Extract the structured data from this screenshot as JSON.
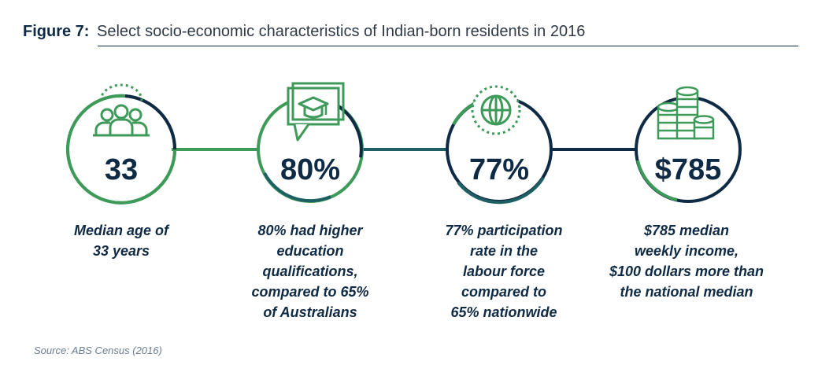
{
  "figure": {
    "label": "Figure 7:",
    "title": "Select socio-economic characteristics of Indian-born residents in 2016"
  },
  "colors": {
    "navy": "#0f2a44",
    "green": "#3e9a58",
    "teal": "#1d5f63"
  },
  "stats": [
    {
      "value": "33",
      "icon": "people-group-icon",
      "caption_lines": [
        "Median age of",
        "33 years"
      ]
    },
    {
      "value": "80%",
      "icon": "graduation-cap-icon",
      "caption_lines": [
        "80% had higher",
        "education",
        "qualifications,",
        "compared to 65%",
        "of Australians"
      ]
    },
    {
      "value": "77%",
      "icon": "globe-icon",
      "caption_lines": [
        "77% participation",
        "rate in the",
        "labour force",
        "compared to",
        "65% nationwide"
      ]
    },
    {
      "value": "$785",
      "icon": "coin-stack-icon",
      "caption_lines": [
        "$785 median",
        "weekly income,",
        "$100 dollars more than",
        "the national median"
      ]
    }
  ],
  "source": "Source: ABS Census (2016)"
}
